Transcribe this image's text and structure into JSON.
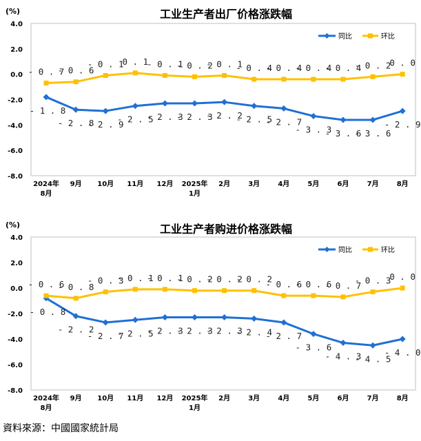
{
  "source_note": "資料來源：中國國家統計局",
  "chart_data": [
    {
      "type": "line",
      "title": "工业生产者出厂价格涨跌幅",
      "y_unit": "(%)",
      "ylim": [
        -8.0,
        4.0
      ],
      "y_ticks": [
        "4.0",
        "2.0",
        "0.0",
        "-2.0",
        "-4.0",
        "-6.0",
        "-8.0"
      ],
      "categories": [
        [
          "2024年",
          "8月"
        ],
        [
          "9月"
        ],
        [
          "10月"
        ],
        [
          "11月"
        ],
        [
          "12月"
        ],
        [
          "2025年",
          "1月"
        ],
        [
          "2月"
        ],
        [
          "3月"
        ],
        [
          "4月"
        ],
        [
          "5月"
        ],
        [
          "6月"
        ],
        [
          "7月"
        ],
        [
          "8月"
        ]
      ],
      "grid": false,
      "legend_position": "top-right",
      "series": [
        {
          "name": "同比",
          "color": "#1f6fd6",
          "values": [
            -1.8,
            -2.8,
            -2.9,
            -2.5,
            -2.3,
            -2.3,
            -2.2,
            -2.5,
            -2.7,
            -3.3,
            -3.6,
            -3.6,
            -2.9
          ],
          "labels": [
            "-1.8",
            "-2.8",
            "-2.9",
            "-2.5",
            "-2.3",
            "-2.3",
            "-2.2",
            "-2.5",
            "-2.7",
            "-3.3",
            "-3.6",
            "-3.6",
            "-2.9"
          ]
        },
        {
          "name": "环比",
          "color": "#ffc000",
          "values": [
            -0.7,
            -0.6,
            -0.1,
            0.1,
            -0.1,
            -0.2,
            -0.1,
            -0.4,
            -0.4,
            -0.4,
            -0.4,
            -0.2,
            0.0
          ],
          "labels": [
            "-0.7",
            "-0.6",
            "-0.1",
            "0.1",
            "-0.1",
            "-0.2",
            "-0.1",
            "-0.4",
            "-0.4",
            "-0.4",
            "-0.4",
            "-0.2",
            "0.0"
          ]
        }
      ]
    },
    {
      "type": "line",
      "title": "工业生产者购进价格涨跌幅",
      "y_unit": "(%)",
      "ylim": [
        -8.0,
        4.0
      ],
      "y_ticks": [
        "4.0",
        "2.0",
        "0.0",
        "-2.0",
        "-4.0",
        "-6.0",
        "-8.0"
      ],
      "categories": [
        [
          "2024年",
          "8月"
        ],
        [
          "9月"
        ],
        [
          "10月"
        ],
        [
          "11月"
        ],
        [
          "12月"
        ],
        [
          "2025年",
          "1月"
        ],
        [
          "2月"
        ],
        [
          "3月"
        ],
        [
          "4月"
        ],
        [
          "5月"
        ],
        [
          "6月"
        ],
        [
          "7月"
        ],
        [
          "8月"
        ]
      ],
      "grid": false,
      "legend_position": "top-right",
      "series": [
        {
          "name": "同比",
          "color": "#1f6fd6",
          "values": [
            -0.8,
            -2.2,
            -2.7,
            -2.5,
            -2.3,
            -2.3,
            -2.3,
            -2.4,
            -2.7,
            -3.6,
            -4.3,
            -4.5,
            -4.0
          ],
          "labels": [
            "-0.8",
            "-2.2",
            "-2.7",
            "-2.5",
            "-2.3",
            "-2.3",
            "-2.3",
            "-2.4",
            "-2.7",
            "-3.6",
            "-4.3",
            "-4.5",
            "-4.0"
          ]
        },
        {
          "name": "环比",
          "color": "#ffc000",
          "values": [
            -0.6,
            -0.8,
            -0.3,
            -0.1,
            -0.1,
            -0.2,
            -0.2,
            -0.2,
            -0.6,
            -0.6,
            -0.7,
            -0.3,
            0.0
          ],
          "labels": [
            "-0.6",
            "-0.8",
            "-0.3",
            "-0.1",
            "-0.1",
            "-0.2",
            "-0.2",
            "-0.2",
            "-0.6",
            "-0.6",
            "-0.7",
            "-0.3",
            "0.0"
          ]
        }
      ]
    }
  ]
}
